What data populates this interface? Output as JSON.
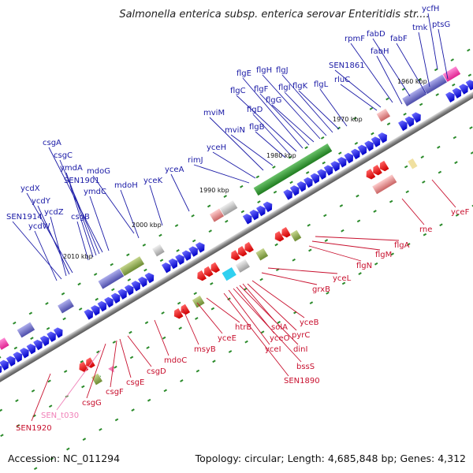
{
  "title": "Salmonella enterica subsp. enterica serovar Enteritidis str....",
  "footer": {
    "accession": "Accession: NC_011294",
    "topology": "Topology: circular; Length: 4,685,848 bp; Genes: 4,312"
  },
  "kbp_labels": [
    "1960 kbp",
    "1970 kbp",
    "1980 kbp",
    "1990 kbp",
    "2000 kbp",
    "2010 kbp"
  ],
  "genes_forward": [
    "ycfH",
    "ptsG",
    "tmk",
    "fabF",
    "fabD",
    "rpmF",
    "fabH",
    "SEN1861",
    "rluC",
    "flgL",
    "flgK",
    "flgJ",
    "flgI",
    "flgH",
    "flgG",
    "flgF",
    "flgE",
    "flgC",
    "flgD",
    "flgB",
    "mviM",
    "mviN",
    "rimJ",
    "yceH",
    "yceA",
    "yceK",
    "mdoG",
    "mdoH",
    "csgA",
    "csgC",
    "ymdA",
    "SEN1901",
    "ymdC",
    "csgB",
    "ycdX",
    "ycdY",
    "ycdZ",
    "SEN1914",
    "ycdW"
  ],
  "genes_reverse": [
    "yceF",
    "rne",
    "flgA",
    "flgM",
    "flgN",
    "yceL",
    "grxB",
    "yceB",
    "pyrC",
    "solA",
    "dinI",
    "yceO",
    "bssS",
    "htrB",
    "yceI",
    "SEN1890",
    "yceE",
    "msyB",
    "mdoC",
    "csgD",
    "csgE",
    "csgF",
    "csgG",
    "SEN_t030",
    "SEN1920"
  ],
  "colors": {
    "forward": "#1a1aa6",
    "reverse": "#c8102e",
    "rna": "#f080b8",
    "backbone": "#777777"
  }
}
